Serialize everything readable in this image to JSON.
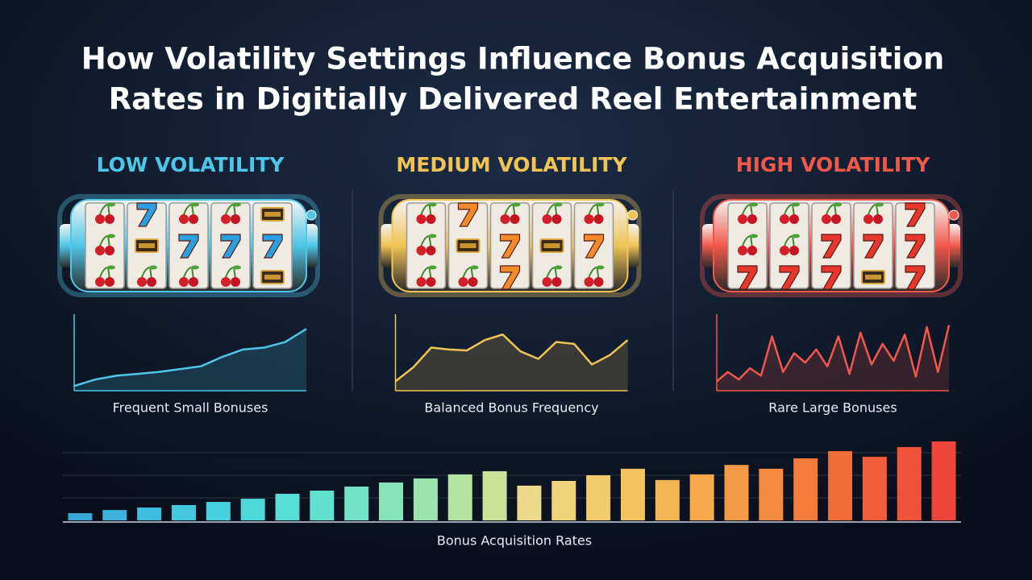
{
  "title": [
    "How Volatility Settings Influence Bonus Acquisition",
    "Rates in Digitially Delivered Reel Entertainment"
  ],
  "panels": [
    {
      "heading": "LOW VOLATILITY",
      "color": "#4fc6e6",
      "caption": "Frequent Small Bonuses",
      "ylim": [
        0,
        8
      ],
      "values": [
        0.5,
        1.2,
        1.6,
        1.8,
        2.0,
        2.3,
        2.6,
        3.6,
        4.4,
        4.6,
        5.2,
        6.6
      ]
    },
    {
      "heading": "MEDIUM VOLATILITY",
      "color": "#f0c455",
      "caption": "Balanced Bonus Frequency",
      "ylim": [
        0,
        8
      ],
      "values": [
        1.0,
        2.5,
        4.6,
        4.4,
        4.3,
        5.4,
        6.0,
        4.2,
        3.4,
        5.2,
        5.0,
        2.8,
        3.8,
        5.4
      ]
    },
    {
      "heading": "HIGH VOLATILITY",
      "color": "#f0584a",
      "caption": "Rare Large Bonuses",
      "ylim": [
        0,
        8
      ],
      "values": [
        1.0,
        2.0,
        1.2,
        2.4,
        1.6,
        5.8,
        2.0,
        4.0,
        3.0,
        4.4,
        2.6,
        5.8,
        1.8,
        6.2,
        2.8,
        5.0,
        3.2,
        6.0,
        1.5,
        6.8,
        2.0,
        7.0
      ]
    }
  ],
  "chart_data": {
    "type": "bar",
    "xlabel": "Bonus Acquisition Rates",
    "values": [
      0.32,
      0.46,
      0.57,
      0.68,
      0.82,
      0.96,
      1.18,
      1.32,
      1.5,
      1.68,
      1.86,
      2.04,
      2.18,
      1.54,
      1.75,
      2.0,
      2.29,
      1.79,
      2.04,
      2.46,
      2.29,
      2.75,
      3.07,
      2.82,
      3.25,
      3.5
    ],
    "colors": [
      "#3aa6d8",
      "#3cb2dc",
      "#3fbedf",
      "#43c8e0",
      "#48d0df",
      "#4dd8dc",
      "#55ddd6",
      "#62e0cf",
      "#72e2c6",
      "#86e3bb",
      "#9ce4ae",
      "#b2e4a0",
      "#c8e397",
      "#ecd98a",
      "#f0d47c",
      "#f2cc6c",
      "#f3c35e",
      "#f4b652",
      "#f5a94a",
      "#f59a44",
      "#f48b3f",
      "#f37b3b",
      "#f26c39",
      "#f15e39",
      "#f0523a",
      "#ee463c"
    ],
    "ylim": [
      0,
      4
    ],
    "yticks": [
      1,
      2,
      3
    ],
    "grid": true
  }
}
